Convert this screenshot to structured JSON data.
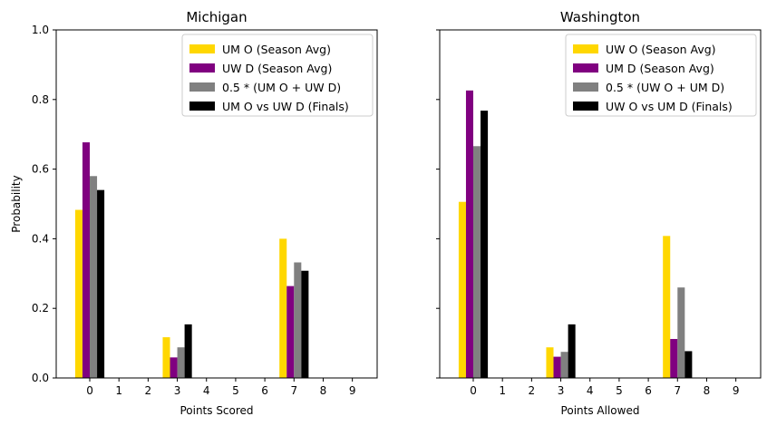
{
  "chart_data": [
    {
      "type": "bar",
      "title": "Michigan",
      "xlabel": "Points Scored",
      "ylabel": "Probability",
      "categories": [
        0,
        3,
        7
      ],
      "xticks": [
        "0",
        "1",
        "2",
        "3",
        "4",
        "5",
        "6",
        "7",
        "8",
        "9"
      ],
      "yticks": [
        "0.0",
        "0.2",
        "0.4",
        "0.6",
        "0.8",
        "1.0"
      ],
      "ylim": [
        0,
        1.0
      ],
      "legend_position": "top-right",
      "series": [
        {
          "name": "UM O (Season Avg)",
          "color": "#FFD700",
          "values": [
            0.483,
            0.117,
            0.4
          ]
        },
        {
          "name": "UW D (Season Avg)",
          "color": "#800080",
          "values": [
            0.677,
            0.059,
            0.264
          ]
        },
        {
          "name": "0.5 * (UM O + UW D)",
          "color": "#808080",
          "values": [
            0.58,
            0.088,
            0.332
          ]
        },
        {
          "name": "UM O vs UW D (Finals)",
          "color": "#000000",
          "values": [
            0.54,
            0.154,
            0.308
          ]
        }
      ]
    },
    {
      "type": "bar",
      "title": "Washington",
      "xlabel": "Points Allowed",
      "ylabel": "",
      "categories": [
        0,
        3,
        7
      ],
      "xticks": [
        "0",
        "1",
        "2",
        "3",
        "4",
        "5",
        "6",
        "7",
        "8",
        "9"
      ],
      "yticks": [
        "0.0",
        "0.2",
        "0.4",
        "0.6",
        "0.8",
        "1.0"
      ],
      "ylim": [
        0,
        1.0
      ],
      "legend_position": "top-right",
      "series": [
        {
          "name": "UW O (Season Avg)",
          "color": "#FFD700",
          "values": [
            0.506,
            0.088,
            0.408
          ]
        },
        {
          "name": "UM D (Season Avg)",
          "color": "#800080",
          "values": [
            0.826,
            0.061,
            0.112
          ]
        },
        {
          "name": "0.5 * (UW O + UM D)",
          "color": "#808080",
          "values": [
            0.666,
            0.075,
            0.26
          ]
        },
        {
          "name": "UW O vs UM D (Finals)",
          "color": "#000000",
          "values": [
            0.768,
            0.154,
            0.077
          ]
        }
      ]
    }
  ]
}
